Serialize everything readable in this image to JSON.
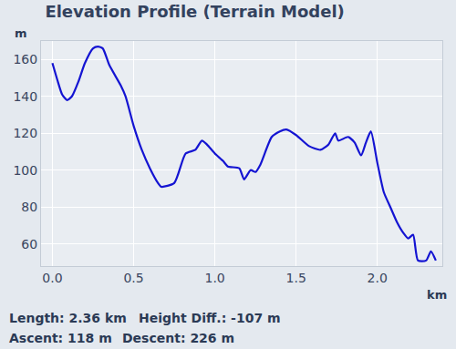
{
  "chart_data": {
    "type": "line",
    "title": "Elevation Profile (Terrain Model)",
    "x_label": "km",
    "y_label": "m",
    "x": [
      0.0,
      0.03,
      0.06,
      0.09,
      0.12,
      0.16,
      0.2,
      0.25,
      0.28,
      0.31,
      0.35,
      0.42,
      0.45,
      0.5,
      0.55,
      0.6,
      0.65,
      0.67,
      0.75,
      0.82,
      0.88,
      0.92,
      0.95,
      1.0,
      1.05,
      1.08,
      1.15,
      1.18,
      1.22,
      1.25,
      1.28,
      1.35,
      1.4,
      1.44,
      1.5,
      1.58,
      1.65,
      1.7,
      1.74,
      1.76,
      1.82,
      1.86,
      1.9,
      1.93,
      1.96,
      2.0,
      2.04,
      2.08,
      2.12,
      2.16,
      2.19,
      2.22,
      2.25,
      2.3,
      2.33,
      2.36
    ],
    "values": [
      158,
      149,
      141,
      138,
      140,
      148,
      158,
      166,
      167,
      166,
      157,
      146,
      140,
      124,
      111,
      101,
      93,
      91,
      93,
      109,
      111,
      116,
      114,
      109,
      105,
      102,
      101,
      95,
      100,
      99,
      103,
      118,
      121,
      122,
      119,
      113,
      111,
      114,
      120,
      116,
      118,
      115,
      108,
      115,
      121,
      104,
      88,
      80,
      72,
      66,
      63,
      65,
      51,
      51,
      56,
      51
    ],
    "color": "#1414d2",
    "xlim": [
      -0.07,
      2.4
    ],
    "ylim": [
      48,
      170
    ],
    "xticks": [
      {
        "value": 0,
        "label": "0.0"
      },
      {
        "value": 0.5,
        "label": "0.5"
      },
      {
        "value": 1,
        "label": "1.0"
      },
      {
        "value": 1.5,
        "label": "1.5"
      },
      {
        "value": 2,
        "label": "2.0"
      }
    ],
    "yticks": [
      60,
      80,
      100,
      120,
      140,
      160
    ],
    "grid": true,
    "annotations": [
      [
        "Length: 2.36 km",
        "Height Diff.: -107 m"
      ],
      [
        "Ascent: 118 m",
        "Descent: 226 m"
      ]
    ]
  }
}
